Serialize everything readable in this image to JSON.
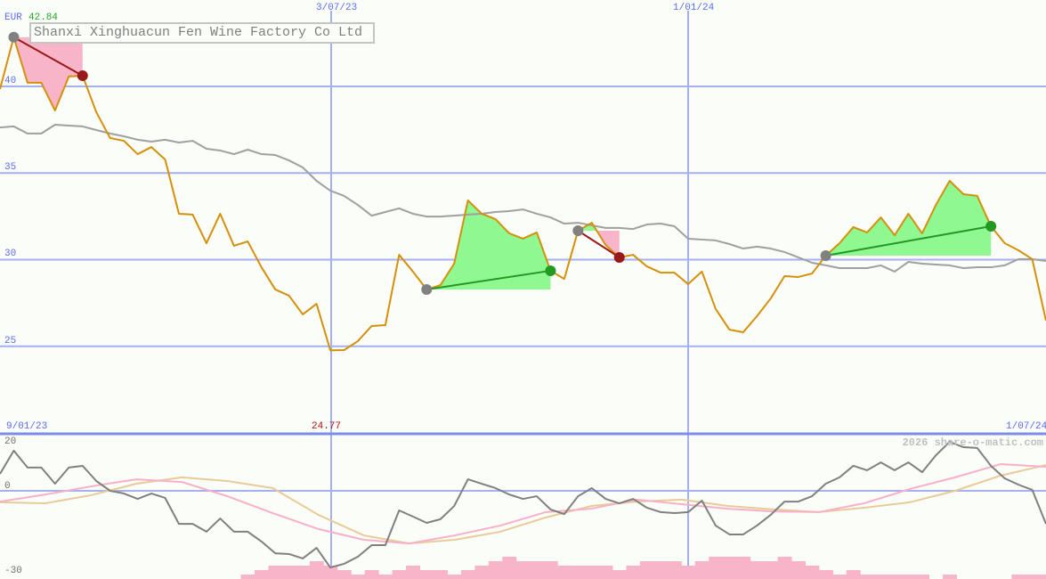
{
  "title": "Shanxi Xinghuacun Fen Wine Factory Co Ltd",
  "currency": "EUR",
  "high_label": "42.84",
  "low_label": "24.77",
  "watermark": "2026 share-o-matic.com",
  "colors": {
    "price": "#d4900a",
    "average": "#a0a0a0",
    "grid": "#a4b0f0",
    "separator": "#7c8ce8",
    "gain": "#90f890",
    "loss": "#f8b4c8",
    "gain_line": "#229922",
    "loss_line": "#991818",
    "osc_main": "#808080",
    "osc_pink": "#f8b0c8",
    "osc_tan": "#e8cc98",
    "volume": "#f8b4c8",
    "date_label": "#5a6cf0",
    "high": "#22aa22",
    "low": "#aa1111"
  },
  "chart_data": [
    {
      "type": "line",
      "panel": "price",
      "x_labels": {
        "start": "9/01/23",
        "mid1": "3/07/23",
        "mid2": "1/01/24",
        "end": "1/07/24"
      },
      "ylabel": "EUR",
      "yticks": [
        "40",
        "35",
        "30",
        "25"
      ],
      "ylim": [
        22.5,
        45.5
      ],
      "grid": true,
      "series": [
        {
          "key": "price",
          "values": [
            39.85,
            42.84,
            40.21,
            40.21,
            38.61,
            40.57,
            40.62,
            38.51,
            37.02,
            36.86,
            36.09,
            36.5,
            35.78,
            32.65,
            32.6,
            30.95,
            32.65,
            30.8,
            31.05,
            29.56,
            28.28,
            27.92,
            26.84,
            27.45,
            24.77,
            24.78,
            25.3,
            26.17,
            26.22,
            30.28,
            29.31,
            28.28,
            28.53,
            29.77,
            33.42,
            32.65,
            32.34,
            31.52,
            31.21,
            31.57,
            29.36,
            28.89,
            31.67,
            32.13,
            30.85,
            30.13,
            30.28,
            29.61,
            29.25,
            29.25,
            28.59,
            29.31,
            27.15,
            25.96,
            25.81,
            26.74,
            27.76,
            29.05,
            29.0,
            29.2,
            30.23,
            30.95,
            31.88,
            31.57,
            32.44,
            31.41,
            32.65,
            31.52,
            33.16,
            34.55,
            33.78,
            33.68,
            31.93,
            30.95,
            30.54,
            30.03,
            26.48
          ]
        },
        {
          "key": "average",
          "values": [
            37.63,
            37.69,
            37.28,
            37.28,
            37.79,
            37.74,
            37.69,
            37.48,
            37.28,
            37.12,
            36.92,
            36.81,
            36.92,
            36.76,
            36.86,
            36.4,
            36.3,
            36.09,
            36.35,
            36.09,
            36.04,
            35.73,
            35.32,
            34.55,
            33.98,
            33.68,
            33.16,
            32.54,
            32.75,
            32.96,
            32.65,
            32.49,
            32.49,
            32.54,
            32.6,
            32.65,
            32.75,
            32.8,
            32.9,
            32.65,
            32.44,
            32.08,
            32.13,
            31.98,
            31.83,
            31.83,
            31.77,
            32.03,
            32.08,
            31.93,
            31.21,
            31.16,
            31.11,
            30.9,
            30.64,
            30.75,
            30.64,
            30.44,
            30.13,
            29.82,
            29.67,
            29.51,
            29.51,
            29.51,
            29.67,
            29.31,
            29.87,
            29.77,
            29.72,
            29.67,
            29.51,
            29.56,
            29.56,
            29.67,
            30.03,
            30.03,
            29.92
          ]
        }
      ],
      "trades": [
        {
          "result": "loss",
          "start_index": 1,
          "end_index": 6
        },
        {
          "result": "gain",
          "start_index": 31,
          "end_index": 40
        },
        {
          "result": "loss",
          "start_index": 42,
          "end_index": 45
        },
        {
          "result": "gain",
          "start_index": 60,
          "end_index": 72
        }
      ]
    },
    {
      "type": "line",
      "panel": "oscillator",
      "yticks": [
        "20",
        "0",
        "-30"
      ],
      "ylim": [
        -32,
        21
      ],
      "series": [
        {
          "key": "osc_main",
          "values": [
            6.9,
            16.4,
            9.5,
            9.5,
            2.9,
            9.5,
            10.2,
            4,
            0,
            -1.1,
            -3.3,
            -1.1,
            -2.9,
            -13.5,
            -13.5,
            -16.7,
            -11.3,
            -16.7,
            -16.7,
            -20.7,
            -25.5,
            -25.8,
            -27.6,
            -23.3,
            -31.3,
            -29.8,
            -26.9,
            -22.2,
            -22.2,
            -8,
            -10.5,
            -13.1,
            -11.6,
            -6.2,
            4.7,
            2.9,
            1.1,
            -1.5,
            -3.3,
            -2.2,
            -7.6,
            -9.5,
            -2.2,
            1.1,
            -3.3,
            -5.1,
            -3.3,
            -6.9,
            -8.7,
            -9.1,
            -8.7,
            -4,
            -14.2,
            -17.8,
            -17.8,
            -14.2,
            -9.8,
            -4.4,
            -4.4,
            -2.2,
            2.9,
            5.5,
            10.2,
            8.4,
            11.6,
            8.4,
            11.6,
            7.6,
            14.5,
            20,
            17.8,
            17.5,
            10.2,
            5.1,
            2.5,
            0.4,
            -13.5
          ]
        },
        {
          "key": "osc_pink",
          "values": [
            -4.4,
            -1.5,
            1.8,
            4.7,
            3.6,
            -2.2,
            -9.1,
            -15.6,
            -20,
            -21.5,
            -18.2,
            -14.2,
            -8.7,
            -7.3,
            -3.6,
            -5.5,
            -7.3,
            -8.4,
            -8.7,
            -5.1,
            0.7,
            5.5,
            10.9,
            9.8
          ]
        },
        {
          "key": "osc_tan",
          "values": [
            -4.7,
            -5.1,
            -1.8,
            2.9,
            5.5,
            4,
            1.1,
            -9.8,
            -18.2,
            -21.5,
            -20,
            -16.7,
            -10.9,
            -6.2,
            -4.4,
            -3.6,
            -6.2,
            -7.6,
            -8.7,
            -6.9,
            -4.7,
            0,
            6.2,
            10.5
          ]
        }
      ],
      "volume_levels": [
        0,
        0,
        0,
        0,
        0,
        0,
        0,
        0,
        0,
        0,
        0,
        0,
        0,
        0,
        0,
        0,
        0,
        0,
        1,
        2,
        3,
        3,
        3,
        4,
        3,
        2,
        1,
        2,
        1,
        2,
        3,
        2,
        2,
        1,
        2,
        3,
        4,
        5,
        4,
        4,
        4,
        3,
        3,
        3,
        3,
        2,
        3,
        4,
        4,
        4,
        3,
        4,
        5,
        5,
        5,
        4,
        4,
        5,
        4,
        3,
        2,
        1,
        2,
        1,
        1,
        1,
        1,
        1,
        0,
        1,
        0,
        0,
        0,
        0,
        1,
        1,
        1
      ]
    }
  ]
}
